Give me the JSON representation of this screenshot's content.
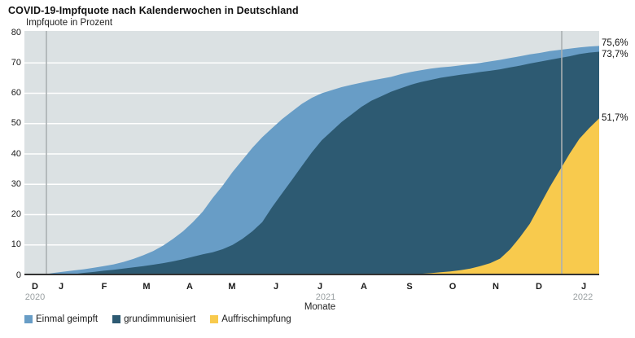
{
  "title": "COVID-19-Impfquote nach Kalenderwochen in Deutschland",
  "axes": {
    "y_title": "Impfquote in Prozent",
    "x_title": "Monate"
  },
  "colors": {
    "plot_background": "#dbe1e3",
    "gridline": "#ffffff",
    "axis_line": "#333333",
    "year_divider": "#aab0b2",
    "einmal_geimpft": "#689dc6",
    "grundimmunisiert": "#2d5a72",
    "auffrischimpfung": "#f8ca4d"
  },
  "chart_data": {
    "type": "area",
    "title": "COVID-19-Impfquote nach Kalenderwochen in Deutschland",
    "xlabel": "Monate",
    "ylabel": "Impfquote in Prozent",
    "ylim": [
      0,
      80
    ],
    "y_ticks": [
      0,
      10,
      20,
      30,
      40,
      50,
      60,
      70,
      80
    ],
    "grid": "horizontal white lines every 10 percent",
    "legend_position": "bottom-left",
    "x_unit": "Kalenderwochen (weekly values), Mitte Dezember 2020 bis Ende Januar 2022",
    "x_month_ticks": [
      "D",
      "J",
      "F",
      "M",
      "A",
      "M",
      "J",
      "J",
      "A",
      "S",
      "O",
      "N",
      "D",
      "J"
    ],
    "x_year_labels": [
      "2020",
      "2021",
      "2022"
    ],
    "year_dividers": [
      "2020/2021",
      "2021/2022"
    ],
    "series": [
      {
        "name": "Einmal geimpft",
        "color": "#689dc6",
        "end_label": "75,6%",
        "final_value": 75.6,
        "values": [
          0,
          0,
          0.3,
          0.8,
          1.2,
          1.6,
          2.0,
          2.5,
          3.0,
          3.6,
          4.4,
          5.4,
          6.6,
          8.0,
          9.8,
          12.0,
          14.5,
          17.5,
          21.0,
          25.5,
          29.5,
          34.0,
          38.0,
          42.0,
          45.5,
          48.5,
          51.5,
          54.0,
          56.5,
          58.5,
          60.0,
          61.0,
          62.0,
          62.8,
          63.5,
          64.2,
          64.8,
          65.4,
          66.3,
          67.0,
          67.6,
          68.1,
          68.5,
          68.8,
          69.2,
          69.6,
          70.0,
          70.5,
          71.0,
          71.6,
          72.2,
          72.8,
          73.3,
          73.9,
          74.3,
          74.7,
          75.1,
          75.4,
          75.6
        ]
      },
      {
        "name": "grundimmunisiert",
        "color": "#2d5a72",
        "end_label": "73,7%",
        "final_value": 73.7,
        "values": [
          0,
          0,
          0,
          0,
          0.1,
          0.4,
          0.8,
          1.1,
          1.5,
          1.8,
          2.2,
          2.6,
          3.0,
          3.5,
          4.0,
          4.6,
          5.3,
          6.1,
          6.9,
          7.6,
          8.6,
          10.0,
          12.0,
          14.5,
          17.5,
          22.5,
          27.0,
          31.5,
          36.0,
          40.5,
          44.5,
          47.5,
          50.5,
          53.0,
          55.5,
          57.5,
          59.0,
          60.5,
          61.7,
          62.8,
          63.7,
          64.4,
          65.1,
          65.6,
          66.1,
          66.5,
          67.0,
          67.4,
          67.9,
          68.5,
          69.1,
          69.8,
          70.4,
          71.0,
          71.6,
          72.2,
          72.9,
          73.4,
          73.7
        ]
      },
      {
        "name": "Auffrischimpfung",
        "color": "#f8ca4d",
        "end_label": "51,7%",
        "final_value": 51.7,
        "values": [
          0,
          0,
          0,
          0,
          0,
          0,
          0,
          0,
          0,
          0,
          0,
          0,
          0,
          0,
          0,
          0,
          0,
          0,
          0,
          0,
          0,
          0,
          0,
          0,
          0,
          0,
          0,
          0,
          0,
          0,
          0,
          0,
          0,
          0,
          0,
          0,
          0,
          0,
          0.1,
          0.3,
          0.5,
          0.7,
          1.0,
          1.3,
          1.7,
          2.2,
          3.0,
          4.0,
          5.5,
          8.5,
          12.5,
          17.0,
          23.0,
          29.0,
          34.5,
          40.0,
          45.0,
          48.5,
          51.7
        ]
      }
    ]
  }
}
